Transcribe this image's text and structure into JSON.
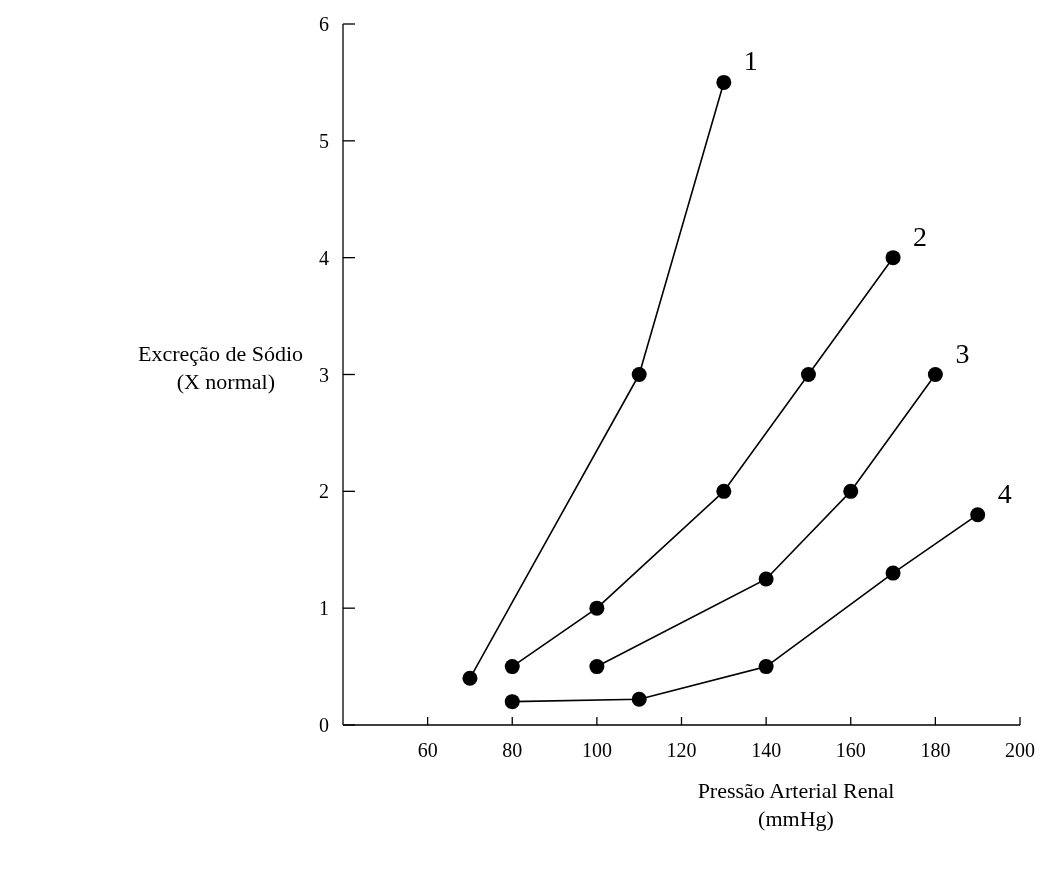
{
  "chart_data": {
    "type": "line",
    "xlabel": "Pressão Arterial Renal\n(mmHg)",
    "ylabel": "Excreção de Sódio\n(X normal)",
    "xlim": [
      40,
      200
    ],
    "ylim": [
      0,
      6
    ],
    "xticks": [
      60,
      80,
      100,
      120,
      140,
      160,
      180,
      200
    ],
    "yticks": [
      0,
      1,
      2,
      3,
      4,
      5,
      6
    ],
    "grid": false,
    "marker": "circle",
    "line_style": "solid",
    "series": [
      {
        "name": "1",
        "color": "#000000",
        "x": [
          70,
          110,
          130
        ],
        "values": [
          0.4,
          3,
          5.5
        ]
      },
      {
        "name": "2",
        "color": "#000000",
        "x": [
          80,
          100,
          130,
          150,
          170
        ],
        "values": [
          0.5,
          1,
          2,
          3,
          4
        ]
      },
      {
        "name": "3",
        "color": "#000000",
        "x": [
          100,
          140,
          160,
          180
        ],
        "values": [
          0.5,
          1.25,
          2,
          3
        ]
      },
      {
        "name": "4",
        "color": "#000000",
        "x": [
          80,
          110,
          140,
          170,
          190
        ],
        "values": [
          0.2,
          0.22,
          0.5,
          1.3,
          1.8
        ]
      }
    ]
  }
}
